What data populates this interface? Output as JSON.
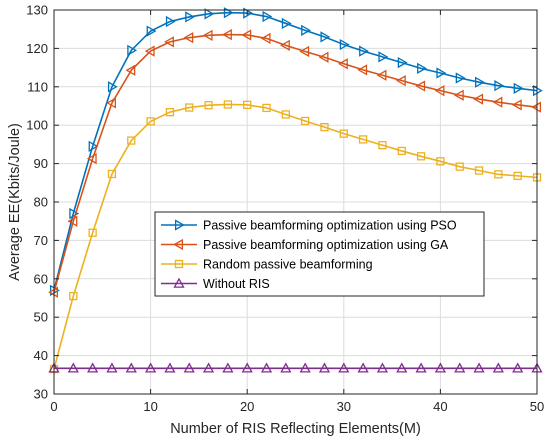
{
  "chart_data": {
    "type": "line",
    "title": "",
    "xlabel": "Number of RIS Reflecting Elements(M)",
    "ylabel": "Average EE(Kbits/Joule)",
    "xlim": [
      0,
      50
    ],
    "ylim": [
      30,
      130
    ],
    "xticks": [
      0,
      10,
      20,
      30,
      40,
      50
    ],
    "yticks": [
      30,
      40,
      50,
      60,
      70,
      80,
      90,
      100,
      110,
      120,
      130
    ],
    "grid": true,
    "legend_position": "center",
    "x": [
      0,
      2,
      4,
      6,
      8,
      10,
      12,
      14,
      16,
      18,
      20,
      22,
      24,
      26,
      28,
      30,
      32,
      34,
      36,
      38,
      40,
      42,
      44,
      46,
      48,
      50
    ],
    "series": [
      {
        "name": "Passive beamforming optimization using PSO",
        "color": "#0072BD",
        "marker": "triangle-right",
        "values": [
          57,
          77,
          94.5,
          110,
          119.5,
          124.5,
          127,
          128.2,
          129,
          129.3,
          129.2,
          128.3,
          126.5,
          124.7,
          123,
          121,
          119.3,
          117.8,
          116.3,
          114.8,
          113.6,
          112.3,
          111.2,
          110.3,
          109.6,
          109
        ]
      },
      {
        "name": "Passive beamforming optimization using GA",
        "color": "#D95319",
        "marker": "triangle-left",
        "values": [
          56.5,
          75,
          91.3,
          105.8,
          114.3,
          119.3,
          121.7,
          122.8,
          123.4,
          123.6,
          123.5,
          122.6,
          120.8,
          119.2,
          117.7,
          116,
          114.4,
          113,
          111.6,
          110.2,
          109,
          107.8,
          106.8,
          106,
          105.3,
          104.7
        ]
      },
      {
        "name": "Random passive beamforming",
        "color": "#EDB120",
        "marker": "square",
        "values": [
          36.5,
          55.5,
          72,
          87.3,
          96,
          101,
          103.4,
          104.6,
          105.2,
          105.4,
          105.3,
          104.5,
          102.8,
          101.1,
          99.5,
          97.8,
          96.3,
          94.8,
          93.3,
          91.9,
          90.6,
          89.2,
          88.2,
          87.2,
          86.8,
          86.4
        ]
      },
      {
        "name": "Without RIS",
        "color": "#7E2F8E",
        "marker": "triangle-up",
        "values": [
          36.7,
          36.7,
          36.7,
          36.7,
          36.7,
          36.7,
          36.7,
          36.7,
          36.7,
          36.7,
          36.7,
          36.7,
          36.7,
          36.7,
          36.7,
          36.7,
          36.7,
          36.7,
          36.7,
          36.7,
          36.7,
          36.7,
          36.7,
          36.7,
          36.7,
          36.7
        ]
      }
    ]
  }
}
